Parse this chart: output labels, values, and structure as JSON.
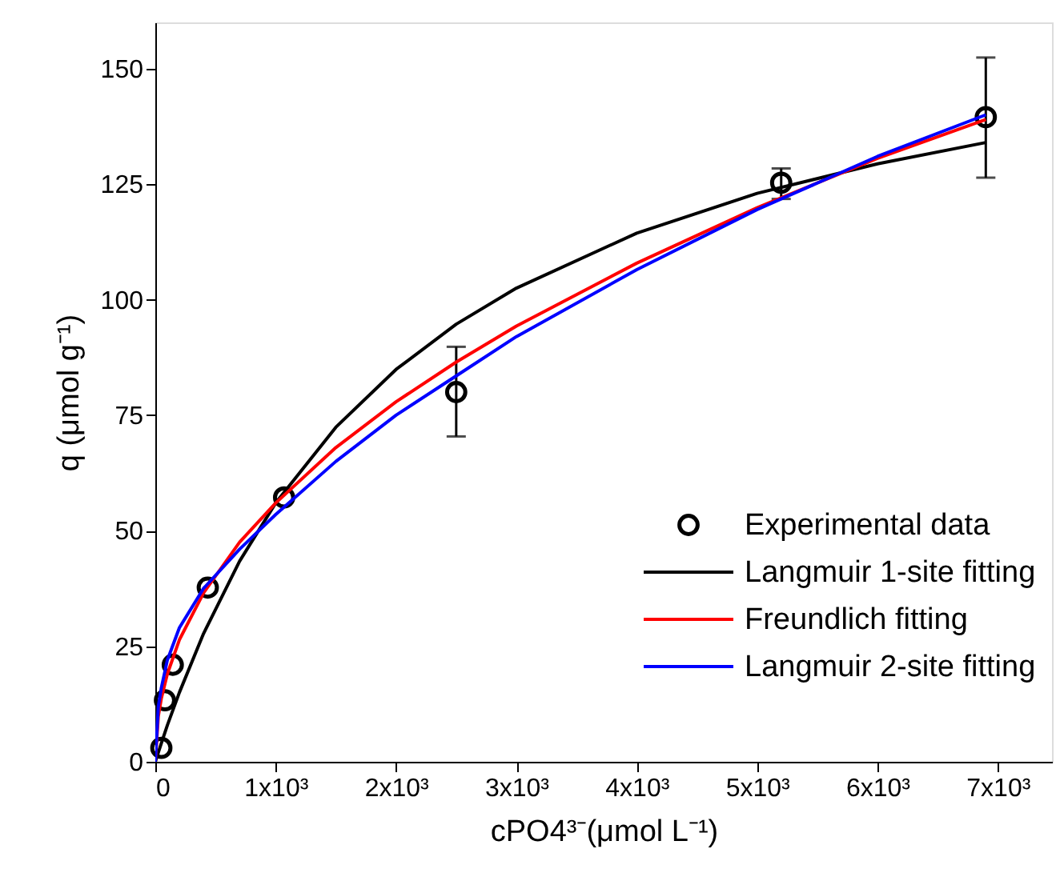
{
  "chart_data": {
    "type": "scatter",
    "xlabel": "cPO4³⁻(μmol L⁻¹)",
    "ylabel": "q (μmol g⁻¹)",
    "xlim": [
      0,
      7450
    ],
    "ylim": [
      0,
      160
    ],
    "xticks": [
      0,
      {
        "value": 1000,
        "label": "1x10³"
      },
      {
        "value": 2000,
        "label": "2x10³"
      },
      {
        "value": 3000,
        "label": "3x10³"
      },
      {
        "value": 4000,
        "label": "4x10³"
      },
      {
        "value": 5000,
        "label": "5x10³"
      },
      {
        "value": 6000,
        "label": "6x10³"
      },
      {
        "value": 7000,
        "label": "7x10³"
      }
    ],
    "yticks": [
      0,
      25,
      50,
      75,
      100,
      125,
      150
    ],
    "grid": false,
    "legend": "bottom right",
    "series": [
      {
        "name": "Experimental data",
        "marker": "circle",
        "color": "#000000",
        "x": [
          50,
          80,
          145,
          436,
          1070,
          2500,
          5200,
          6900
        ],
        "values": [
          3,
          13.3,
          21,
          37.7,
          57.2,
          80,
          125.3,
          139.5
        ],
        "errors": [
          null,
          null,
          null,
          null,
          null,
          [
            70.4,
            89.8
          ],
          [
            121.8,
            128.4
          ],
          [
            126.4,
            152.4
          ]
        ]
      },
      {
        "name": "Langmuir 1-site fitting",
        "type": "line",
        "marker": "none",
        "line_style": "solid",
        "color": "#000000",
        "x": [
          0,
          25,
          50,
          100,
          200,
          400,
          700,
          1000,
          1500,
          2000,
          2500,
          3000,
          4000,
          5000,
          6000,
          6900
        ],
        "values": [
          0,
          2,
          4,
          7.9,
          15,
          27.7,
          43.4,
          56,
          72.4,
          84.9,
          94.7,
          102.5,
          114.4,
          123,
          129.4,
          134
        ]
      },
      {
        "name": "Freundlich fitting",
        "type": "line",
        "marker": "none",
        "line_style": "solid",
        "color": "#ff0000",
        "x": [
          0,
          25,
          50,
          100,
          200,
          400,
          700,
          1000,
          1500,
          2000,
          2500,
          3000,
          4000,
          5000,
          6000,
          6900
        ],
        "values": [
          0,
          9.9,
          13.7,
          19,
          26.4,
          36.5,
          47.5,
          56,
          68,
          77.9,
          86.5,
          94.3,
          107.9,
          119.9,
          130.6,
          139
        ]
      },
      {
        "name": "Langmuir 2-site fitting",
        "type": "line",
        "marker": "none",
        "line_style": "solid",
        "color": "#0000ff",
        "x": [
          0,
          25,
          50,
          100,
          200,
          400,
          700,
          1000,
          1500,
          2000,
          2500,
          3000,
          4000,
          5000,
          6000,
          6900
        ],
        "values": [
          0,
          12,
          16,
          22,
          29,
          37.5,
          46,
          53.5,
          65,
          75,
          83.5,
          92,
          106.5,
          119.5,
          131,
          140
        ]
      }
    ]
  }
}
